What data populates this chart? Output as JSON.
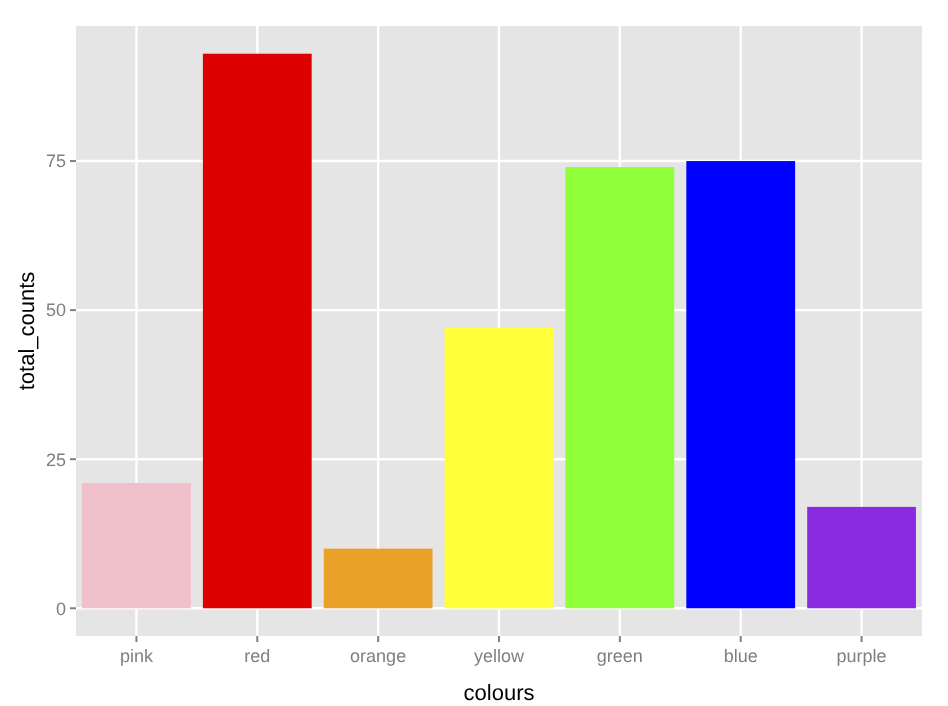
{
  "chart_data": {
    "type": "bar",
    "xlabel": "colours",
    "ylabel": "total_counts",
    "categories": [
      "pink",
      "red",
      "orange",
      "yellow",
      "green",
      "blue",
      "purple"
    ],
    "values": [
      21,
      93,
      10,
      47,
      74,
      75,
      17
    ],
    "colors": [
      "#efbfca",
      "#dc0000",
      "#e9a128",
      "#ffff3a",
      "#8fff3a",
      "#0000ff",
      "#8a2be2"
    ],
    "ylim": [
      -4.65,
      97.65
    ],
    "yticks": [
      0,
      25,
      50,
      75
    ],
    "grid": true
  }
}
